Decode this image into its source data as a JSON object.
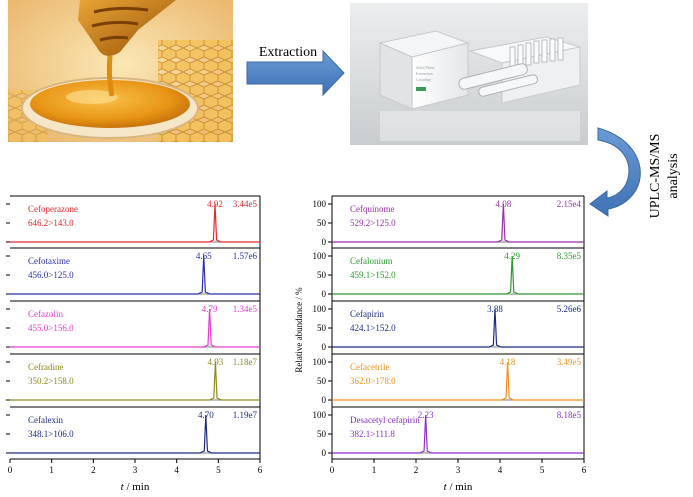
{
  "flow": {
    "extraction_label": "Extraction",
    "analysis_label_line1": "UPLC-MS/MS",
    "analysis_label_line2": "analysis"
  },
  "colors": {
    "arrow": "#4f81bd",
    "arrow_edge": "#3a6aa3",
    "frame": "#000000"
  },
  "spe_box_text": [
    "Solid Phase",
    "Extraction",
    "Cartridge"
  ],
  "chart_data": [
    {
      "type": "line",
      "xlabel_italic": "t",
      "xlabel_rest": " / min",
      "xlim": [
        0,
        6
      ],
      "xticks": [
        0,
        1,
        2,
        3,
        4,
        5,
        6
      ],
      "yticks": [
        0,
        50,
        100
      ],
      "ylim": [
        0,
        100
      ],
      "series": [
        {
          "name": "Cefoperazone",
          "transition": "646.2>143.0",
          "rt": "4.92",
          "intensity": "3.44e5",
          "color": "#e8262b",
          "peak_x": 4.92,
          "peak_y": 100
        },
        {
          "name": "Cefotaxime",
          "transition": "456.0>125.0",
          "rt": "4.65",
          "intensity": "1.57e6",
          "color": "#2b2fb0",
          "peak_x": 4.65,
          "peak_y": 100
        },
        {
          "name": "Cefazolin",
          "transition": "455.0>156.0",
          "rt": "4.79",
          "intensity": "1.34e5",
          "color": "#e83ad0",
          "peak_x": 4.79,
          "peak_y": 100
        },
        {
          "name": "Cefradine",
          "transition": "350.2>158.0",
          "rt": "4.93",
          "intensity": "1.18e7",
          "color": "#8c8a1f",
          "peak_x": 4.93,
          "peak_y": 100
        },
        {
          "name": "Cefalexin",
          "transition": "348.1>106.0",
          "rt": "4.70",
          "intensity": "1.19e7",
          "color": "#1c2a8c",
          "peak_x": 4.7,
          "peak_y": 100
        }
      ]
    },
    {
      "type": "line",
      "ylabel": "Relative abundance / %",
      "xlabel_italic": "t",
      "xlabel_rest": " / min",
      "xlim": [
        0,
        6
      ],
      "xticks": [
        0,
        1,
        2,
        3,
        4,
        5,
        6
      ],
      "yticks": [
        0,
        50,
        100
      ],
      "ylim": [
        0,
        100
      ],
      "series": [
        {
          "name": "Cefquinome",
          "transition": "529.2>125.0",
          "rt": "4.08",
          "intensity": "2.15e4",
          "color": "#9a2fae",
          "peak_x": 4.08,
          "peak_y": 100
        },
        {
          "name": "Cefalonium",
          "transition": "459.1>152.0",
          "rt": "4.29",
          "intensity": "8.35e5",
          "color": "#2c9a2f",
          "peak_x": 4.29,
          "peak_y": 100
        },
        {
          "name": "Cefapirin",
          "transition": "424.1>152.0",
          "rt": "3.88",
          "intensity": "5.26e6",
          "color": "#1c2a8c",
          "peak_x": 3.88,
          "peak_y": 100
        },
        {
          "name": "Cefacetrile",
          "transition": "362.0>178.0",
          "rt": "4.18",
          "intensity": "3.49e5",
          "color": "#f0901e",
          "peak_x": 4.18,
          "peak_y": 100
        },
        {
          "name": "Desacetyl cefapirin",
          "transition": "382.1>111.8",
          "rt": "2.23",
          "intensity": "8.18e5",
          "color": "#8a2fd0",
          "peak_x": 2.23,
          "peak_y": 100
        }
      ]
    }
  ]
}
